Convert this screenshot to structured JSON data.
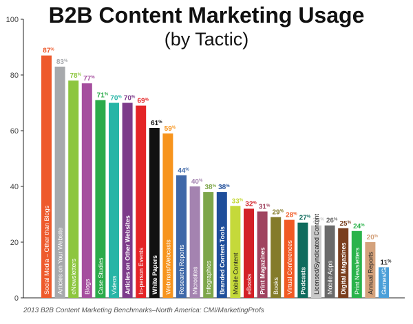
{
  "chart_data": {
    "type": "bar",
    "title": "B2B Content Marketing Usage",
    "subtitle": "(by Tactic)",
    "source": "2013 B2B Content Marketing Benchmarks–North America: CMI/MarketingProfs",
    "ylim": [
      0,
      100
    ],
    "yticks": [
      0,
      20,
      40,
      60,
      80,
      100
    ],
    "grid": false,
    "value_suffix": "%",
    "categories": [
      "Social Media – Other than Blogs",
      "Articles on Your Website",
      "eNewsletters",
      "Blogs",
      "Case Studies",
      "Videos",
      "Articles on Other Websites",
      "In-person Events",
      "White Papers",
      "Webinars/Webcasts",
      "Research Reports",
      "Microsites",
      "Infographics",
      "Branded Content Tools",
      "Mobile Content",
      "eBooks",
      "Print Magazines",
      "Books",
      "Virtual Conferences",
      "Podcasts",
      "Licensed/Syndicated Content",
      "Mobile Apps",
      "Digital Magazines",
      "Print Newsletters",
      "Annual Reports",
      "Games/Gamification"
    ],
    "values": [
      87,
      83,
      78,
      77,
      71,
      70,
      70,
      69,
      61,
      59,
      44,
      40,
      38,
      38,
      33,
      32,
      31,
      29,
      28,
      27,
      26,
      26,
      25,
      24,
      20,
      11
    ],
    "colors": [
      "#ee5a2c",
      "#a7a9ac",
      "#8dc63f",
      "#a54e9e",
      "#2bab4a",
      "#27b5a6",
      "#7d3b8a",
      "#e42426",
      "#111111",
      "#f7941d",
      "#3f68a8",
      "#a483b0",
      "#7da64a",
      "#1f4e9a",
      "#c5d93a",
      "#d32127",
      "#a04460",
      "#847b2a",
      "#f15a24",
      "#0f6b5d",
      "#c9c9c9",
      "#6a6a6a",
      "#7a3e1e",
      "#2ab34b",
      "#d4a27c",
      "#4b9fd8"
    ],
    "label_colors": [
      "#ee5a2c",
      "#a7a9ac",
      "#8dc63f",
      "#a54e9e",
      "#2bab4a",
      "#27b5a6",
      "#7d3b8a",
      "#e42426",
      "#111111",
      "#f7941d",
      "#3f68a8",
      "#a483b0",
      "#7da64a",
      "#1f4e9a",
      "#c5d93a",
      "#d32127",
      "#a04460",
      "#847b2a",
      "#f15a24",
      "#0f6b5d",
      "#c9c9c9",
      "#6a6a6a",
      "#7a3e1e",
      "#2ab34b",
      "#d4a27c",
      "#111111"
    ],
    "dark_text_bars": [
      14,
      20,
      24
    ],
    "bold_text_bars": [
      6,
      8,
      13,
      16,
      19,
      22
    ]
  }
}
